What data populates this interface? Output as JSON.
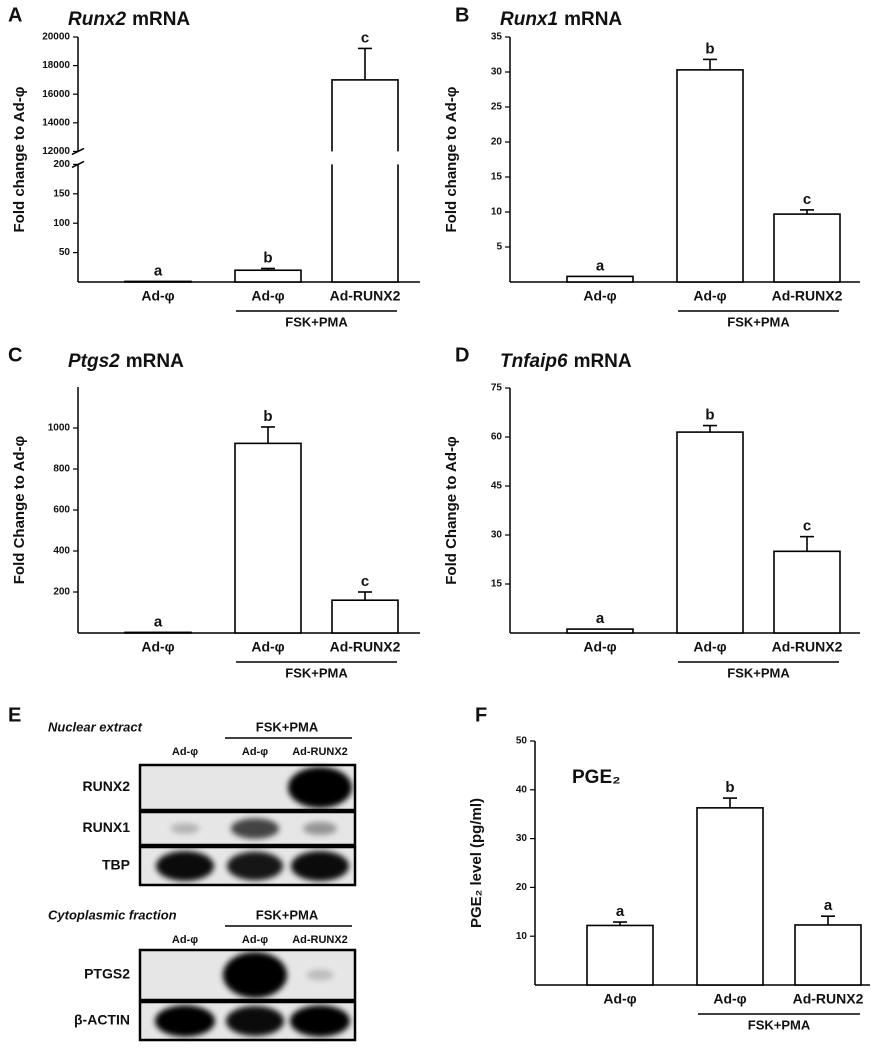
{
  "chart_data": [
    {
      "type": "bar",
      "panel": "A",
      "title_italic": "Runx2",
      "title": "mRNA",
      "ylabel": "Fold change to Ad-φ",
      "categories": [
        "Ad-φ",
        "Ad-φ",
        "Ad-RUNX2"
      ],
      "group_label": "FSK+PMA",
      "values": [
        1,
        20,
        17000
      ],
      "errors": [
        null,
        3,
        2200
      ],
      "letters": [
        "a",
        "b",
        "c"
      ],
      "color": "#ffffff",
      "ylim": [
        0,
        20000
      ],
      "ybreak": [
        200,
        12000
      ],
      "yticks": [
        50,
        100,
        150,
        200,
        12000,
        14000,
        16000,
        18000,
        20000
      ]
    },
    {
      "type": "bar",
      "panel": "B",
      "title_italic": "Runx1",
      "title": "mRNA",
      "ylabel": "Fold change to Ad-φ",
      "categories": [
        "Ad-φ",
        "Ad-φ",
        "Ad-RUNX2"
      ],
      "group_label": "FSK+PMA",
      "values": [
        0.8,
        30.3,
        9.7
      ],
      "errors": [
        null,
        1.5,
        0.6
      ],
      "letters": [
        "a",
        "b",
        "c"
      ],
      "color": "#ffffff",
      "ylim": [
        0,
        35
      ],
      "yticks": [
        5,
        10,
        15,
        20,
        25,
        30,
        35
      ]
    },
    {
      "type": "bar",
      "panel": "C",
      "title_italic": "Ptgs2",
      "title": "mRNA",
      "ylabel": "Fold Change to Ad-φ",
      "categories": [
        "Ad-φ",
        "Ad-φ",
        "Ad-RUNX2"
      ],
      "group_label": "FSK+PMA",
      "values": [
        3,
        925,
        160
      ],
      "errors": [
        null,
        80,
        40
      ],
      "letters": [
        "a",
        "b",
        "c"
      ],
      "color": "#ffffff",
      "ylim": [
        0,
        1200
      ],
      "yticks": [
        200,
        400,
        600,
        800,
        1000
      ]
    },
    {
      "type": "bar",
      "panel": "D",
      "title_italic": "Tnfaip6",
      "title": "mRNA",
      "ylabel": "Fold Change to Ad-φ",
      "categories": [
        "Ad-φ",
        "Ad-φ",
        "Ad-RUNX2"
      ],
      "group_label": "FSK+PMA",
      "values": [
        1.2,
        61.5,
        25
      ],
      "errors": [
        null,
        2,
        4.5
      ],
      "letters": [
        "a",
        "b",
        "c"
      ],
      "color": "#ffffff",
      "ylim": [
        0,
        75
      ],
      "yticks": [
        15,
        30,
        45,
        60,
        75
      ]
    },
    {
      "type": "bar",
      "panel": "F",
      "title": "PGE₂",
      "ylabel": "PGE₂ level (pg/ml)",
      "categories": [
        "Ad-φ",
        "Ad-φ",
        "Ad-RUNX2"
      ],
      "group_label": "FSK+PMA",
      "values": [
        12.2,
        36.3,
        12.3
      ],
      "errors": [
        0.7,
        2,
        1.8
      ],
      "letters": [
        "a",
        "b",
        "a"
      ],
      "color": "#ffffff",
      "ylim": [
        0,
        50
      ],
      "yticks": [
        10,
        20,
        30,
        40,
        50
      ]
    }
  ],
  "blot": {
    "panel": "E",
    "sections": [
      {
        "title": "Nuclear extract",
        "group_label": "FSK+PMA",
        "lanes": [
          "Ad-φ",
          "Ad-φ",
          "Ad-RUNX2"
        ],
        "rows": [
          "RUNX2",
          "RUNX1",
          "TBP"
        ]
      },
      {
        "title": "Cytoplasmic fraction",
        "group_label": "FSK+PMA",
        "lanes": [
          "Ad-φ",
          "Ad-φ",
          "Ad-RUNX2"
        ],
        "rows": [
          "PTGS2",
          "β-ACTIN"
        ]
      }
    ]
  }
}
